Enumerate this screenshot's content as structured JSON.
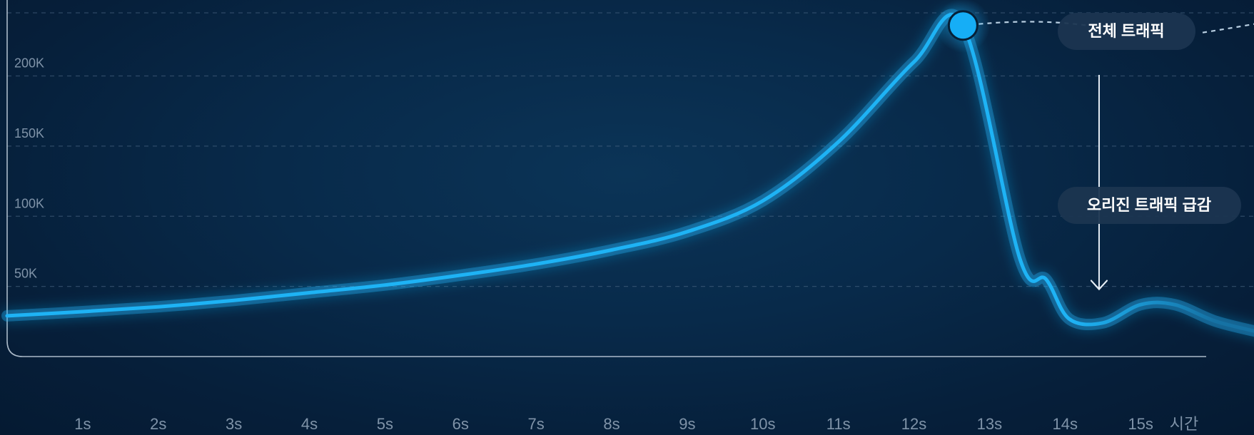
{
  "chart_data": {
    "type": "line",
    "title": "",
    "xlabel": "시간",
    "ylabel": "",
    "grid": true,
    "xlim": [
      0,
      16.5
    ],
    "ylim": [
      0,
      245000
    ],
    "x_ticks": [
      {
        "value": 1,
        "label": "1s"
      },
      {
        "value": 2,
        "label": "2s"
      },
      {
        "value": 3,
        "label": "3s"
      },
      {
        "value": 4,
        "label": "4s"
      },
      {
        "value": 5,
        "label": "5s"
      },
      {
        "value": 6,
        "label": "6s"
      },
      {
        "value": 7,
        "label": "7s"
      },
      {
        "value": 8,
        "label": "8s"
      },
      {
        "value": 9,
        "label": "9s"
      },
      {
        "value": 10,
        "label": "10s"
      },
      {
        "value": 11,
        "label": "11s"
      },
      {
        "value": 12,
        "label": "12s"
      },
      {
        "value": 13,
        "label": "13s"
      },
      {
        "value": 14,
        "label": "14s"
      },
      {
        "value": 15,
        "label": "15s"
      }
    ],
    "y_ticks": [
      {
        "value": 50000,
        "label": "50K"
      },
      {
        "value": 100000,
        "label": "100K"
      },
      {
        "value": 150000,
        "label": "150K"
      },
      {
        "value": 200000,
        "label": "200K"
      }
    ],
    "gridlines": [
      50000,
      100000,
      150000,
      200000,
      245000
    ],
    "series": [
      {
        "color": "#1eb3f5",
        "x": [
          0,
          1,
          2,
          3,
          4,
          5,
          6,
          7,
          8,
          9,
          10,
          11,
          12,
          12.65,
          13.4,
          13.75,
          14.05,
          14.5,
          15.0,
          15.45,
          16.0,
          16.6
        ],
        "y": [
          29000,
          32000,
          35500,
          40000,
          45500,
          51000,
          58000,
          66000,
          76000,
          89000,
          111000,
          153000,
          210000,
          236000,
          70000,
          55000,
          27000,
          24000,
          37000,
          37000,
          25000,
          17000
        ]
      }
    ],
    "annotations": [
      {
        "id": "peak",
        "text": "전체 트래픽",
        "x": 12.65,
        "y": 236000,
        "marker": "circle",
        "leader": "dashed"
      },
      {
        "id": "drop",
        "text": "오리진 트래픽 급감",
        "x": 14.45,
        "y": 200000,
        "arrow_to_y": 48000
      }
    ]
  }
}
